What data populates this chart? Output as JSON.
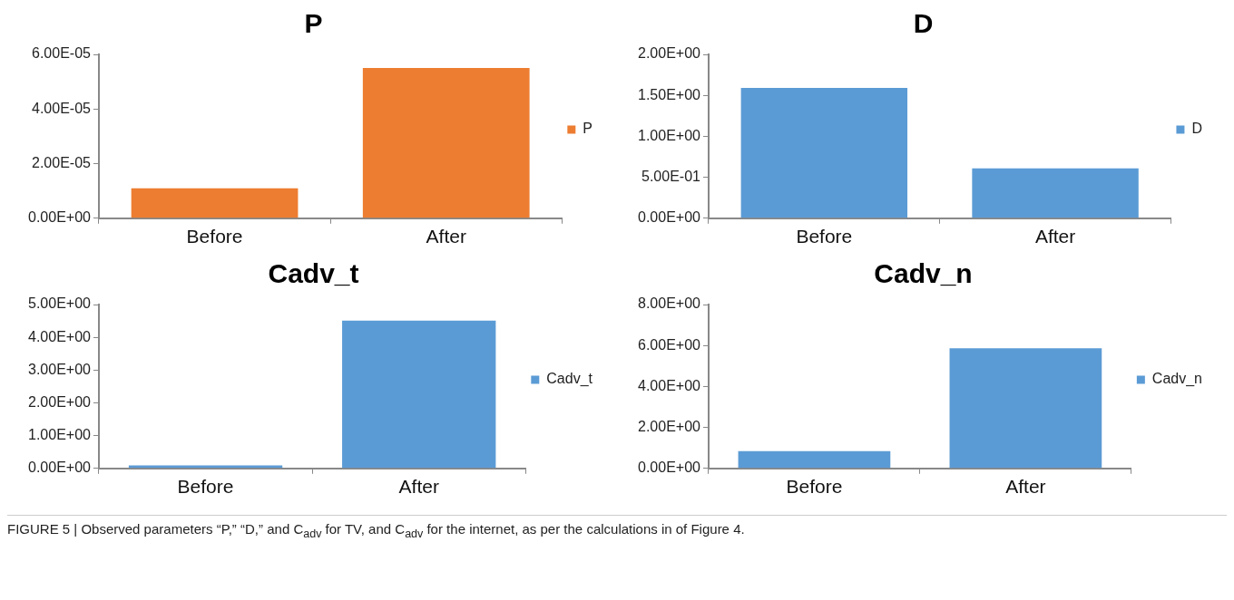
{
  "chart_data": [
    {
      "type": "bar",
      "title": "P",
      "categories": [
        "Before",
        "After"
      ],
      "series": [
        {
          "name": "P",
          "color": "#ed7d31",
          "values": [
            1.1e-05,
            5.5e-05
          ]
        }
      ],
      "ylim": [
        0,
        6e-05
      ],
      "yticks": [
        {
          "value": 0,
          "label": "0.00E+00"
        },
        {
          "value": 2e-05,
          "label": "2.00E-05"
        },
        {
          "value": 4e-05,
          "label": "4.00E-05"
        },
        {
          "value": 6e-05,
          "label": "6.00E-05"
        }
      ],
      "legend": "right",
      "annotations": [
        "FIGURE 5 | Observed parameters “P,” “D,” and C$_{adv}$ for TV, and C$_{adv}$ for the internet, as per the calculations in of Figure 4."
      ]
    },
    {
      "type": "bar",
      "title": "D",
      "categories": [
        "Before",
        "After"
      ],
      "series": [
        {
          "name": "D",
          "color": "#5b9bd5",
          "values": [
            1.59,
            0.61
          ]
        }
      ],
      "ylim": [
        0,
        2
      ],
      "yticks": [
        {
          "value": 0,
          "label": "0.00E+00"
        },
        {
          "value": 0.5,
          "label": "5.00E-01"
        },
        {
          "value": 1,
          "label": "1.00E+00"
        },
        {
          "value": 1.5,
          "label": "1.50E+00"
        },
        {
          "value": 2,
          "label": "2.00E+00"
        }
      ],
      "legend": "right"
    },
    {
      "type": "bar",
      "title": "Cadv_t",
      "categories": [
        "Before",
        "After"
      ],
      "series": [
        {
          "name": "Cadv_t",
          "color": "#5b9bd5",
          "values": [
            0.09,
            4.51
          ]
        }
      ],
      "ylim": [
        0,
        5
      ],
      "yticks": [
        {
          "value": 0,
          "label": "0.00E+00"
        },
        {
          "value": 1,
          "label": "1.00E+00"
        },
        {
          "value": 2,
          "label": "2.00E+00"
        },
        {
          "value": 3,
          "label": "3.00E+00"
        },
        {
          "value": 4,
          "label": "4.00E+00"
        },
        {
          "value": 5,
          "label": "5.00E+00"
        }
      ],
      "legend": "right"
    },
    {
      "type": "bar",
      "title": "Cadv_n",
      "categories": [
        "Before",
        "After"
      ],
      "series": [
        {
          "name": "Cadv_n",
          "color": "#5b9bd5",
          "values": [
            0.84,
            5.86
          ]
        }
      ],
      "ylim": [
        0,
        8
      ],
      "yticks": [
        {
          "value": 0,
          "label": "0.00E+00"
        },
        {
          "value": 2,
          "label": "2.00E+00"
        },
        {
          "value": 4,
          "label": "4.00E+00"
        },
        {
          "value": 6,
          "label": "6.00E+00"
        },
        {
          "value": 8,
          "label": "8.00E+00"
        }
      ],
      "legend": "right"
    }
  ]
}
